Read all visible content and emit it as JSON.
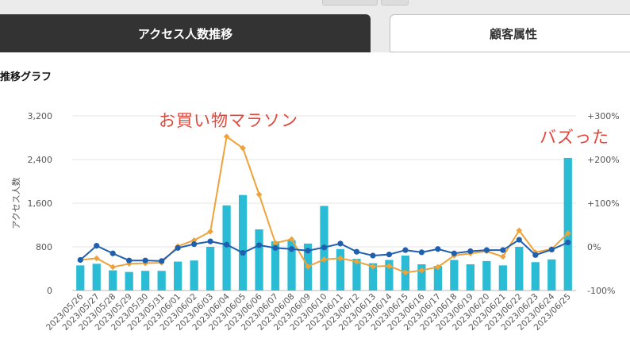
{
  "tabs": {
    "active": "アクセス人数推移",
    "inactive": "顧客属性"
  },
  "section_title": "推移グラフ",
  "annotations": {
    "left": "お買い物マラソン",
    "right": "バズった"
  },
  "colors": {
    "bar": "#29bcd4",
    "line_blue": "#1f5fae",
    "line_orange": "#f0a23a",
    "annotation": "#e2473c"
  },
  "chart_data": {
    "type": "bar",
    "ylabel": "アクセス人数",
    "yticks": [
      "0",
      "800",
      "1,600",
      "2,400",
      "3,200"
    ],
    "y2ticks": [
      "-100%",
      "0%",
      "+100%",
      "+200%",
      "+300%"
    ],
    "ylim": [
      0,
      3200
    ],
    "y2lim": [
      -100,
      300
    ],
    "grid": true,
    "categories": [
      "2023/05/26",
      "2023/05/27",
      "2023/05/28",
      "2023/05/29",
      "2023/05/30",
      "2023/05/31",
      "2023/06/01",
      "2023/06/02",
      "2023/06/03",
      "2023/06/04",
      "2023/06/05",
      "2023/06/06",
      "2023/06/07",
      "2023/06/08",
      "2023/06/09",
      "2023/06/10",
      "2023/06/11",
      "2023/06/12",
      "2023/06/13",
      "2023/06/14",
      "2023/06/15",
      "2023/06/16",
      "2023/06/17",
      "2023/06/18",
      "2023/06/19",
      "2023/06/20",
      "2023/06/21",
      "2023/06/22",
      "2023/06/23",
      "2023/06/24",
      "2023/06/25"
    ],
    "series": [
      {
        "type": "bar",
        "axis": "left",
        "values": [
          460,
          490,
          370,
          340,
          360,
          360,
          530,
          550,
          800,
          1560,
          1750,
          1120,
          900,
          920,
          860,
          1550,
          760,
          580,
          500,
          560,
          640,
          480,
          450,
          560,
          480,
          540,
          460,
          800,
          520,
          570,
          2430
        ]
      },
      {
        "type": "line",
        "axis": "left",
        "color": "blue",
        "values": [
          560,
          820,
          680,
          550,
          550,
          540,
          780,
          850,
          900,
          840,
          690,
          830,
          780,
          760,
          730,
          790,
          860,
          710,
          640,
          660,
          740,
          700,
          760,
          680,
          720,
          740,
          740,
          930,
          650,
          750,
          880
        ]
      },
      {
        "type": "line",
        "axis": "left",
        "color": "orange",
        "values": [
          560,
          590,
          430,
          490,
          500,
          510,
          810,
          920,
          1080,
          2820,
          2610,
          1760,
          870,
          940,
          440,
          570,
          590,
          530,
          440,
          450,
          330,
          370,
          430,
          640,
          680,
          720,
          620,
          1100,
          700,
          760,
          1050
        ]
      }
    ]
  }
}
